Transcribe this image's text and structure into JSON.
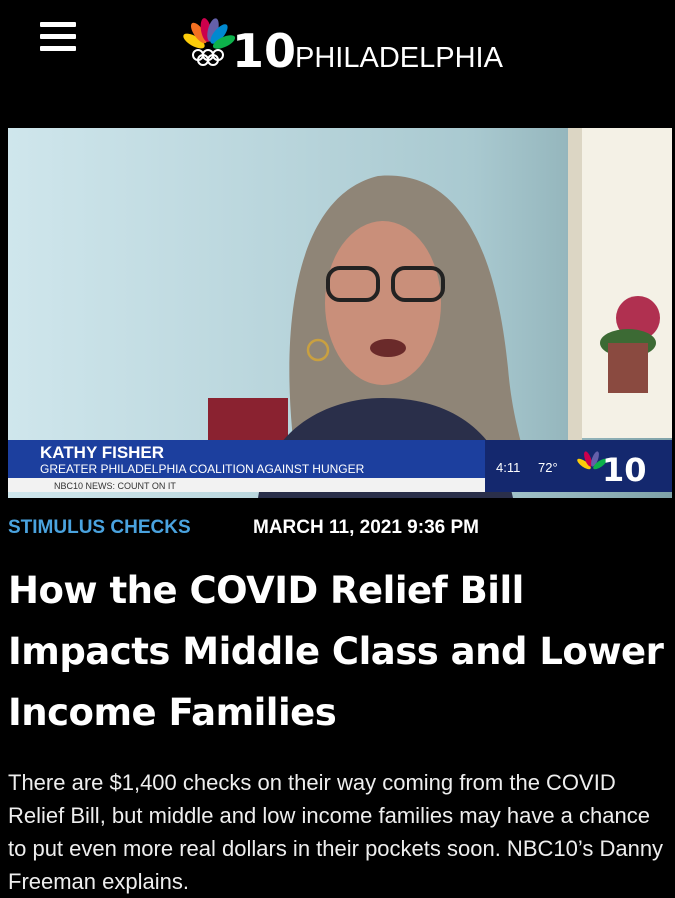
{
  "header": {
    "logo_number": "10",
    "logo_text": "PHILADELPHIA"
  },
  "video": {
    "lower_third": {
      "name": "KATHY FISHER",
      "organization": "GREATER PHILADELPHIA COALITION AGAINST HUNGER",
      "ticker": "NBC10 NEWS: COUNT ON IT",
      "time": "4:11",
      "temperature": "72°",
      "logo_number": "10"
    }
  },
  "article": {
    "category": "STIMULUS CHECKS",
    "date": "MARCH 11, 2021 9:36 PM",
    "headline": "How the COVID Relief Bill Impacts Middle Class and Lower Income Families",
    "summary": "There are $1,400 checks on their way coming from the COVID Relief Bill, but middle and low income families may have a chance to put even more real dollars in their pockets soon. NBC10’s Danny Freeman explains."
  }
}
